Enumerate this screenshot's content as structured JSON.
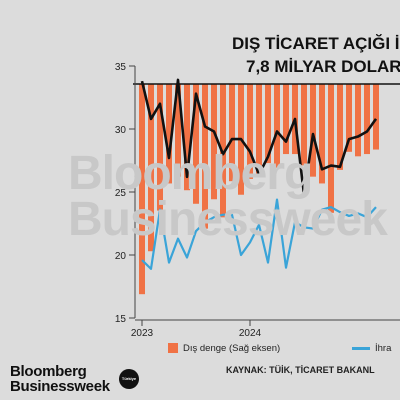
{
  "header": {
    "title_line1": "DIŞ TİCARET AÇIĞI İ",
    "title_line2": "7,8 MİLYAR DOLAR"
  },
  "watermark": {
    "line1": "Bloomberg",
    "line2": "Businessweek"
  },
  "brand": {
    "logo_line1": "Bloomberg",
    "logo_line2": "Businessweek",
    "badge": "Türkiye"
  },
  "legend": {
    "bar_label": "Dış denge (Sağ eksen)",
    "line_label": "İhra"
  },
  "source": "KAYNAK: TÜİK, TİCARET BAKANL",
  "colors": {
    "bars": "#f07245",
    "black_series": "#111111",
    "blue_series": "#3aa4d8",
    "reference_line": "#111111"
  },
  "chart_data": {
    "type": "bar",
    "title": "DIŞ TİCARET AÇIĞI İ… 7,8 MİLYAR DOLAR…",
    "left_axis": {
      "ylim": [
        15,
        35
      ],
      "ticks": [
        15,
        20,
        25,
        30,
        35
      ]
    },
    "x_tick_labels": [
      {
        "label": "2023",
        "index": 0
      },
      {
        "label": "2024",
        "index": 12
      }
    ],
    "grid": false,
    "legend_position": "bottom",
    "bars_depth_fraction": [
      0.93,
      0.74,
      0.56,
      0.44,
      0.41,
      0.47,
      0.53,
      0.64,
      0.51,
      0.59,
      0.43,
      0.49,
      0.42,
      0.4,
      0.35,
      0.37,
      0.31,
      0.31,
      0.36,
      0.41,
      0.44,
      0.57,
      0.38,
      0.3,
      0.32,
      0.31,
      0.29
    ],
    "series": [
      {
        "name": "",
        "color": "#111111",
        "values": [
          33.8,
          30.8,
          32.0,
          27.7,
          33.9,
          26.2,
          32.8,
          30.2,
          29.8,
          28.0,
          29.2,
          29.2,
          28.2,
          26.4,
          27.8,
          29.8,
          29.0,
          30.8,
          24.8,
          29.6,
          26.8,
          27.1,
          27.0,
          29.2,
          29.4,
          29.8,
          30.8
        ]
      },
      {
        "name": "İhra",
        "color": "#3aa4d8",
        "values": [
          19.6,
          18.9,
          23.6,
          19.4,
          21.3,
          19.8,
          21.9,
          22.6,
          23.0,
          23.2,
          23.2,
          20.0,
          21.0,
          22.4,
          19.4,
          24.4,
          19.0,
          22.6,
          22.2,
          22.1,
          23.6,
          23.8,
          23.4,
          23.1,
          23.3,
          23.0,
          23.8
        ]
      }
    ]
  }
}
